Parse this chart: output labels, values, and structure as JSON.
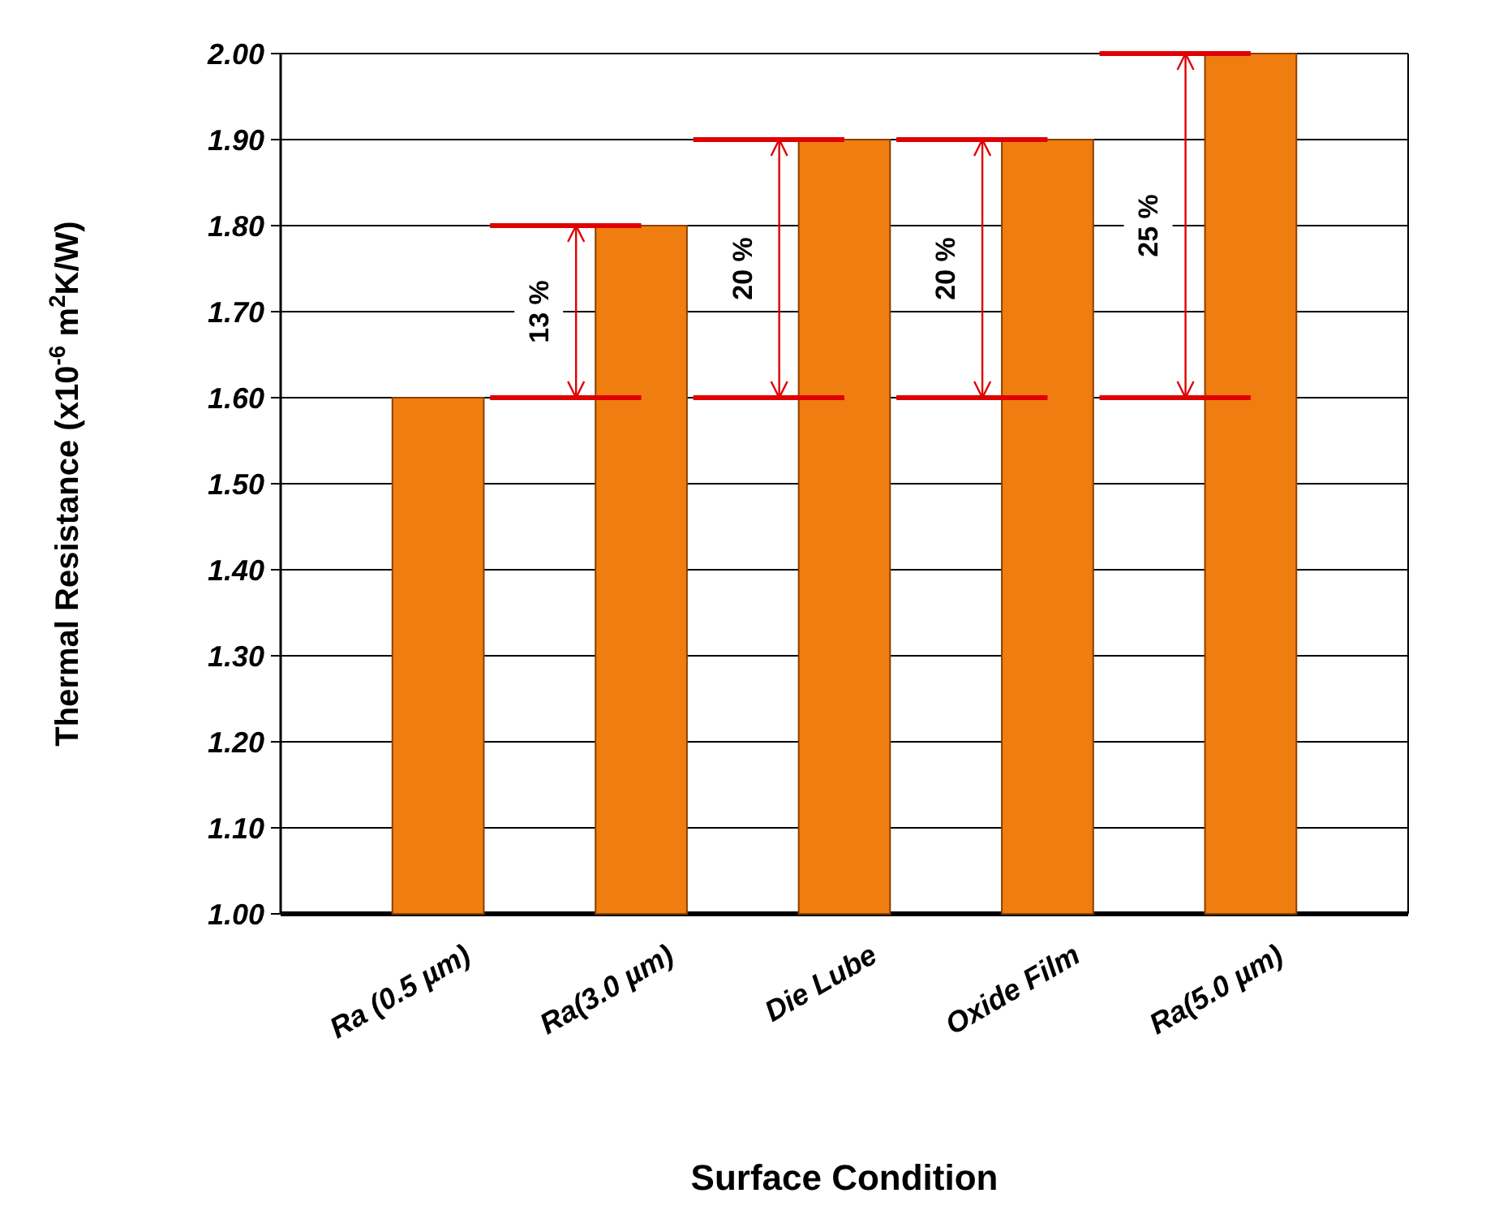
{
  "chart_data": {
    "type": "bar",
    "xlabel": "Surface Condition",
    "ylabel": "Thermal Resistance  (x10$^{-6}$ m$^{2}$K/W)",
    "categories": [
      "Ra (0.5 µm)",
      "Ra(3.0 µm)",
      "Die Lube",
      "Oxide Film",
      "Ra(5.0 µm)"
    ],
    "values": [
      1.6,
      1.8,
      1.9,
      1.9,
      2.0
    ],
    "color": "#f07d10",
    "ylim": [
      1,
      2
    ],
    "yticks": [
      {
        "value": 1,
        "label": "1.00"
      },
      {
        "value": 1.1,
        "label": "1.10"
      },
      {
        "value": 1.2,
        "label": "1.20"
      },
      {
        "value": 1.3,
        "label": "1.30"
      },
      {
        "value": 1.4,
        "label": "1.40"
      },
      {
        "value": 1.5,
        "label": "1.50"
      },
      {
        "value": 1.6,
        "label": "1.60"
      },
      {
        "value": 1.7,
        "label": "1.70"
      },
      {
        "value": 1.8,
        "label": "1.80"
      },
      {
        "value": 1.9,
        "label": "1.90"
      },
      {
        "value": 2,
        "label": "2.00"
      }
    ],
    "grid": "y",
    "annotations": [
      "13 %",
      "20 %",
      "20 %",
      "25 %"
    ]
  }
}
